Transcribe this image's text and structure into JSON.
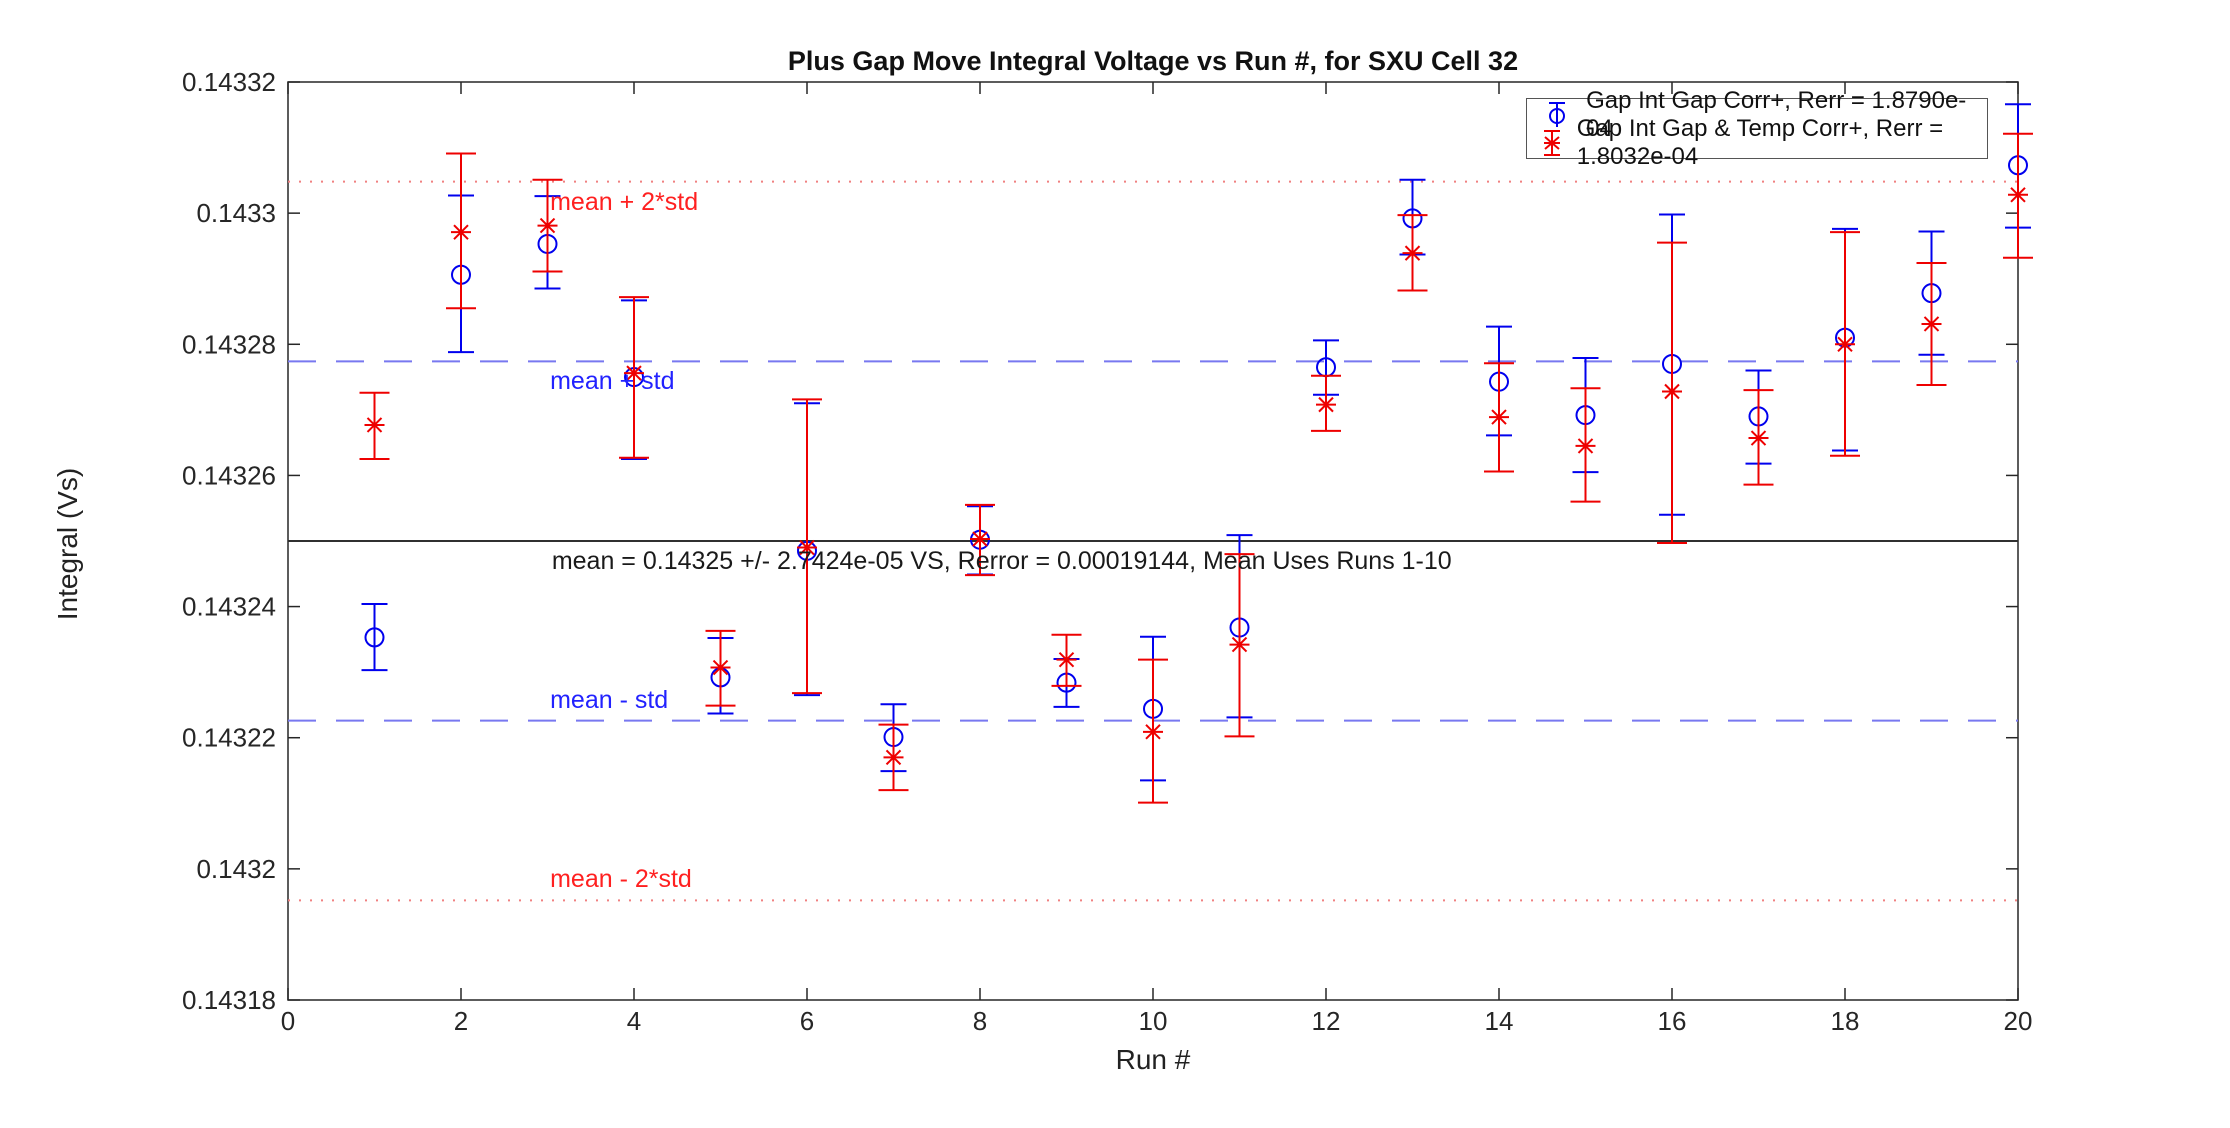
{
  "chart_data": {
    "type": "scatter",
    "title": "Plus Gap Move Integral Voltage vs Run #, for SXU Cell 32",
    "xlabel": "Run #",
    "ylabel": "Integral (Vs)",
    "xlim": [
      0,
      20
    ],
    "ylim": [
      0.14318,
      0.14332
    ],
    "grid": false,
    "legend_position": "top-right",
    "xticks": [
      0,
      2,
      4,
      6,
      8,
      10,
      12,
      14,
      16,
      18,
      20
    ],
    "yticks": [
      0.14318,
      0.1432,
      0.14322,
      0.14324,
      0.14326,
      0.14328,
      0.1433,
      0.14332
    ],
    "ytick_labels": [
      "0.14318",
      "0.1432",
      "0.14322",
      "0.14324",
      "0.14326",
      "0.14328",
      "0.1433",
      "0.14332"
    ],
    "x": [
      1,
      2,
      3,
      4,
      5,
      6,
      7,
      8,
      9,
      10,
      11,
      12,
      13,
      14,
      15,
      16,
      17,
      18,
      19,
      20
    ],
    "series": [
      {
        "name": "Gap Int Gap Corr+, Rerr = 1.8790e-04",
        "marker": "circle",
        "color": "#0000ee",
        "values": [
          0.1432353,
          0.1432906,
          0.1432953,
          0.143275,
          0.1432292,
          0.1432485,
          0.1432201,
          0.1432502,
          0.1432284,
          0.1432244,
          0.1432368,
          0.1432765,
          0.1432992,
          0.1432743,
          0.1432692,
          0.143277,
          0.143269,
          0.143281,
          0.1432878,
          0.1433073
        ],
        "err_lo": [
          0.1432303,
          0.1432788,
          0.1432885,
          0.1432625,
          0.1432237,
          0.1432265,
          0.1432149,
          0.1432449,
          0.1432247,
          0.1432135,
          0.1432231,
          0.1432723,
          0.1432937,
          0.1432661,
          0.1432605,
          0.143254,
          0.1432618,
          0.1432638,
          0.1432784,
          0.1432978
        ],
        "err_hi": [
          0.1432404,
          0.1433027,
          0.1433026,
          0.1432867,
          0.1432352,
          0.143271,
          0.1432251,
          0.1432553,
          0.143232,
          0.1432354,
          0.1432509,
          0.1432806,
          0.1433051,
          0.1432827,
          0.1432779,
          0.1432998,
          0.143276,
          0.1432976,
          0.1432972,
          0.1433166
        ]
      },
      {
        "name": "Gap Int Gap & Temp  Corr+, Rerr = 1.8032e-04",
        "marker": "asterisk",
        "color": "#ee0000",
        "values": [
          0.1432677,
          0.1432971,
          0.1432981,
          0.1432756,
          0.1432307,
          0.143249,
          0.143217,
          0.1432503,
          0.1432319,
          0.1432209,
          0.1432342,
          0.1432708,
          0.1432939,
          0.1432689,
          0.1432645,
          0.1432728,
          0.1432657,
          0.14328,
          0.1432831,
          0.1433028
        ],
        "err_lo": [
          0.1432625,
          0.1432855,
          0.1432911,
          0.1432627,
          0.1432249,
          0.1432268,
          0.143212,
          0.1432448,
          0.1432279,
          0.1432101,
          0.1432202,
          0.1432668,
          0.1432882,
          0.1432606,
          0.143256,
          0.1432497,
          0.1432586,
          0.143263,
          0.1432738,
          0.1432932
        ],
        "err_hi": [
          0.1432726,
          0.1433091,
          0.1433051,
          0.1432872,
          0.1432363,
          0.1432716,
          0.143222,
          0.1432555,
          0.1432357,
          0.1432319,
          0.143248,
          0.1432752,
          0.1432997,
          0.1432771,
          0.1432733,
          0.1432955,
          0.143273,
          0.1432971,
          0.1432924,
          0.1433121
        ]
      }
    ],
    "reference_lines": [
      {
        "label": "mean + 2*std",
        "value": 0.1433048,
        "style": "dotted",
        "color": "#f08080",
        "label_x": 3.03,
        "label_side": "below"
      },
      {
        "label": "mean + std",
        "value": 0.1432774,
        "style": "dashed",
        "color": "#7878f0",
        "label_x": 3.03,
        "label_side": "below"
      },
      {
        "label": "mean",
        "value": 0.14325,
        "style": "solid",
        "color": "#303030",
        "label_x": 3.05,
        "label_side": "below",
        "annotation": "mean = 0.14325 +/- 2.7424e-05 VS, Rerror = 0.00019144, Mean Uses Runs 1-10"
      },
      {
        "label": "mean - std",
        "value": 0.1432226,
        "style": "dashed",
        "color": "#7878f0",
        "label_x": 3.03,
        "label_side": "above"
      },
      {
        "label": "mean - 2*std",
        "value": 0.1431952,
        "style": "dotted",
        "color": "#f08080",
        "label_x": 3.03,
        "label_side": "above"
      }
    ]
  },
  "legend": {
    "entries": [
      {
        "label": "Gap Int Gap Corr+, Rerr = 1.8790e-04",
        "marker": "circle",
        "color": "#0000ee"
      },
      {
        "label": "Gap Int Gap & Temp  Corr+, Rerr = 1.8032e-04",
        "marker": "asterisk",
        "color": "#ee0000"
      }
    ]
  }
}
